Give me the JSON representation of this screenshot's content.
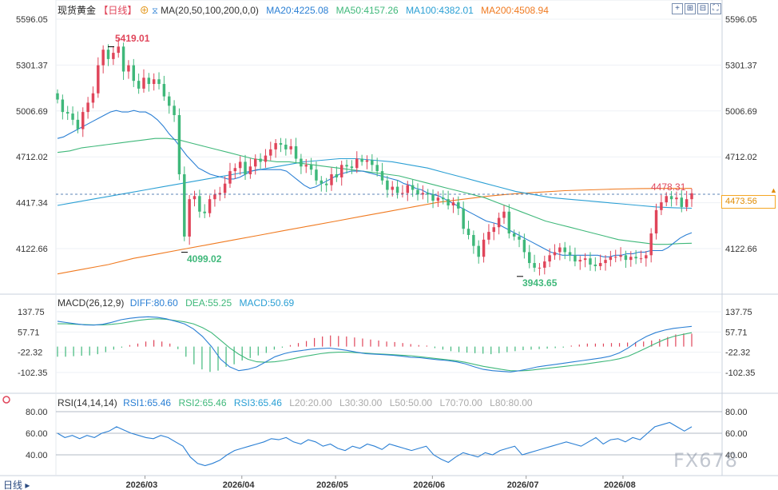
{
  "header": {
    "title": "现货黄金",
    "period": "【日线】",
    "ma_label": "MA(20,50,100,200,0,0)",
    "ma20": "MA20:4225.08",
    "ma50": "MA50:4157.26",
    "ma100": "MA100:4382.01",
    "ma200": "MA200:4508.94"
  },
  "price_axis": [
    "5596.05",
    "5301.37",
    "5006.69",
    "4712.02",
    "4417.34",
    "4122.66"
  ],
  "annotations": {
    "high": "5419.01",
    "low1": "4099.02",
    "low2": "3943.65",
    "last_marker": "4478.31",
    "current_price": "4473.56"
  },
  "macd": {
    "label": "MACD(26,12,9)",
    "diff": "DIFF:80.60",
    "dea": "DEA:55.25",
    "macd": "MACD:50.69",
    "axis": [
      "137.75",
      "57.71",
      "-22.32",
      "-102.35"
    ]
  },
  "rsi": {
    "label": "RSI(14,14,14)",
    "rsi1": "RSI1:65.46",
    "rsi2": "RSI2:65.46",
    "rsi3": "RSI3:65.46",
    "l20": "L20:20.00",
    "l30": "L30:30.00",
    "l50": "L50:50.00",
    "l70": "L70:70.00",
    "l80": "L80:80.00",
    "axis": [
      "80.00",
      "60.00",
      "40.00"
    ]
  },
  "x_axis": [
    "2026/03",
    "2026/04",
    "2026/05",
    "2026/06",
    "2026/07",
    "2026/08"
  ],
  "footer": {
    "period_button": "日线"
  },
  "watermark": "FX678",
  "colors": {
    "up": "#e0455a",
    "down": "#3fb87a",
    "ma20": "#2a7fd4",
    "ma50": "#3fb87a",
    "ma100": "#2a9fd4",
    "ma200": "#f07a20",
    "diff": "#2a7fd4",
    "dea": "#3fb87a",
    "rsi": "#2a7fd4",
    "price_tag": "#f5a623"
  },
  "chart_data": {
    "type": "candlestick",
    "title": "现货黄金",
    "ylim": [
      3900,
      5620
    ],
    "x_range": [
      "2026-02-01",
      "2026-08-22"
    ],
    "x_ticks": [
      "2026/03",
      "2026/04",
      "2026/05",
      "2026/06",
      "2026/07",
      "2026/08"
    ],
    "close": [
      5080,
      5000,
      4990,
      4950,
      4890,
      5000,
      5060,
      5120,
      5300,
      5400,
      5340,
      5380,
      5420,
      5260,
      5300,
      5200,
      5150,
      5220,
      5180,
      5210,
      5180,
      5100,
      5040,
      4980,
      4600,
      4200,
      4440,
      4460,
      4360,
      4350,
      4440,
      4470,
      4480,
      4540,
      4620,
      4640,
      4680,
      4600,
      4650,
      4700,
      4680,
      4720,
      4760,
      4800,
      4790,
      4760,
      4780,
      4700,
      4650,
      4660,
      4630,
      4560,
      4540,
      4530,
      4600,
      4580,
      4660,
      4650,
      4640,
      4700,
      4680,
      4690,
      4660,
      4620,
      4560,
      4500,
      4520,
      4480,
      4480,
      4530,
      4500,
      4470,
      4480,
      4470,
      4430,
      4450,
      4440,
      4400,
      4420,
      4380,
      4250,
      4210,
      4140,
      4070,
      4180,
      4230,
      4260,
      4320,
      4360,
      4220,
      4200,
      4180,
      4100,
      4030,
      4000,
      4000,
      4040,
      4080,
      4100,
      4130,
      4100,
      4080,
      4040,
      4050,
      4060,
      4020,
      4010,
      4030,
      4050,
      4070,
      4070,
      4080,
      4050,
      4070,
      4060,
      4060,
      4080,
      4220,
      4370,
      4420,
      4460,
      4440,
      4450,
      4390,
      4440,
      4478
    ],
    "ma20": [
      4830,
      4840,
      4860,
      4880,
      4900,
      4920,
      4940,
      4960,
      4980,
      5000,
      5010,
      5000,
      5000,
      5010,
      5000,
      5000,
      4980,
      4950,
      4910,
      4860,
      4820,
      4770,
      4720,
      4680,
      4640,
      4620,
      4600,
      4590,
      4580,
      4570,
      4570,
      4580,
      4600,
      4620,
      4630,
      4630,
      4630,
      4630,
      4630,
      4620,
      4590,
      4560,
      4530,
      4510,
      4520,
      4540,
      4560,
      4580,
      4600,
      4610,
      4620,
      4620,
      4620,
      4610,
      4600,
      4590,
      4580,
      4570,
      4560,
      4540,
      4530,
      4510,
      4500,
      4480,
      4470,
      4460,
      4440,
      4420,
      4400,
      4380,
      4360,
      4340,
      4320,
      4300,
      4290,
      4280,
      4260,
      4240,
      4220,
      4200,
      4180,
      4160,
      4140,
      4120,
      4100,
      4090,
      4080,
      4080,
      4080,
      4080,
      4080,
      4080,
      4080,
      4070,
      4070,
      4080,
      4080,
      4090,
      4090,
      4100,
      4100,
      4110,
      4110,
      4110,
      4130,
      4160,
      4190,
      4210,
      4225
    ],
    "ma50": [
      4740,
      4750,
      4770,
      4780,
      4790,
      4800,
      4810,
      4820,
      4830,
      4830,
      4820,
      4800,
      4780,
      4760,
      4740,
      4720,
      4700,
      4690,
      4680,
      4680,
      4670,
      4660,
      4650,
      4640,
      4630,
      4620,
      4610,
      4600,
      4590,
      4570,
      4550,
      4530,
      4510,
      4490,
      4470,
      4450,
      4420,
      4390,
      4360,
      4330,
      4300,
      4280,
      4260,
      4240,
      4220,
      4200,
      4180,
      4170,
      4160,
      4150,
      4150,
      4155,
      4157
    ],
    "ma100": [
      4400,
      4420,
      4440,
      4460,
      4480,
      4500,
      4520,
      4540,
      4560,
      4580,
      4600,
      4620,
      4640,
      4660,
      4680,
      4690,
      4700,
      4700,
      4690,
      4680,
      4660,
      4640,
      4610,
      4580,
      4550,
      4520,
      4490,
      4470,
      4450,
      4440,
      4430,
      4420,
      4410,
      4400,
      4390,
      4385,
      4382
    ],
    "ma200": [
      3960,
      3990,
      4020,
      4060,
      4090,
      4120,
      4150,
      4180,
      4210,
      4240,
      4270,
      4300,
      4330,
      4360,
      4390,
      4420,
      4440,
      4460,
      4475,
      4485,
      4495,
      4500,
      4505,
      4508,
      4509,
      4509
    ],
    "macd_diff": [
      100,
      95,
      90,
      86,
      85,
      88,
      96,
      106,
      112,
      116,
      118,
      116,
      110,
      100,
      90,
      70,
      40,
      0,
      -50,
      -80,
      -95,
      -90,
      -80,
      -60,
      -40,
      -28,
      -20,
      -15,
      -10,
      -8,
      -6,
      -10,
      -15,
      -22,
      -28,
      -30,
      -32,
      -34,
      -38,
      -42,
      -44,
      -48,
      -52,
      -55,
      -60,
      -68,
      -80,
      -90,
      -95,
      -98,
      -100,
      -95,
      -88,
      -80,
      -75,
      -70,
      -65,
      -60,
      -55,
      -50,
      -45,
      -38,
      -25,
      -5,
      20,
      40,
      55,
      65,
      72,
      76,
      80
    ],
    "macd_dea": [
      90,
      90,
      88,
      87,
      86,
      86,
      88,
      92,
      98,
      104,
      108,
      110,
      108,
      103,
      98,
      90,
      75,
      55,
      25,
      -5,
      -30,
      -50,
      -60,
      -62,
      -60,
      -55,
      -48,
      -40,
      -34,
      -28,
      -24,
      -22,
      -22,
      -24,
      -26,
      -28,
      -30,
      -32,
      -34,
      -36,
      -40,
      -44,
      -48,
      -52,
      -56,
      -62,
      -70,
      -78,
      -84,
      -90,
      -95,
      -96,
      -94,
      -90,
      -86,
      -82,
      -78,
      -74,
      -70,
      -65,
      -60,
      -55,
      -48,
      -38,
      -22,
      -5,
      12,
      28,
      40,
      48,
      55
    ],
    "macd_hist": [
      -40,
      -40,
      -38,
      -36,
      -35,
      -30,
      -22,
      -12,
      -4,
      6,
      12,
      20,
      26,
      20,
      12,
      -10,
      -40,
      -70,
      -90,
      -100,
      -95,
      -80,
      -70,
      -55,
      -45,
      -35,
      -25,
      -12,
      -4,
      6,
      14,
      22,
      34,
      40,
      44,
      42,
      40,
      36,
      32,
      28,
      24,
      20,
      18,
      14,
      10,
      6,
      4,
      -6,
      -12,
      -18,
      -22,
      -24,
      -26,
      -28,
      -30,
      -26,
      -22,
      -18,
      -14,
      -12,
      -10,
      -8,
      -6,
      -4,
      4,
      8,
      12,
      12,
      12,
      14,
      14,
      16,
      18,
      20,
      24,
      30,
      38,
      48,
      52,
      51
    ],
    "rsi": [
      60,
      56,
      58,
      55,
      58,
      56,
      60,
      62,
      66,
      63,
      60,
      58,
      56,
      55,
      58,
      56,
      52,
      48,
      38,
      32,
      30,
      32,
      35,
      40,
      44,
      46,
      48,
      50,
      52,
      55,
      54,
      56,
      52,
      50,
      54,
      52,
      48,
      50,
      46,
      44,
      48,
      46,
      50,
      48,
      45,
      50,
      48,
      46,
      44,
      46,
      48,
      40,
      36,
      33,
      38,
      42,
      40,
      38,
      42,
      40,
      44,
      46,
      48,
      40,
      42,
      44,
      46,
      48,
      50,
      52,
      50,
      48,
      52,
      56,
      50,
      54,
      55,
      52,
      56,
      54,
      60,
      66,
      68,
      70,
      66,
      62,
      66
    ],
    "rsi_levels": [
      80,
      60,
      40
    ]
  }
}
